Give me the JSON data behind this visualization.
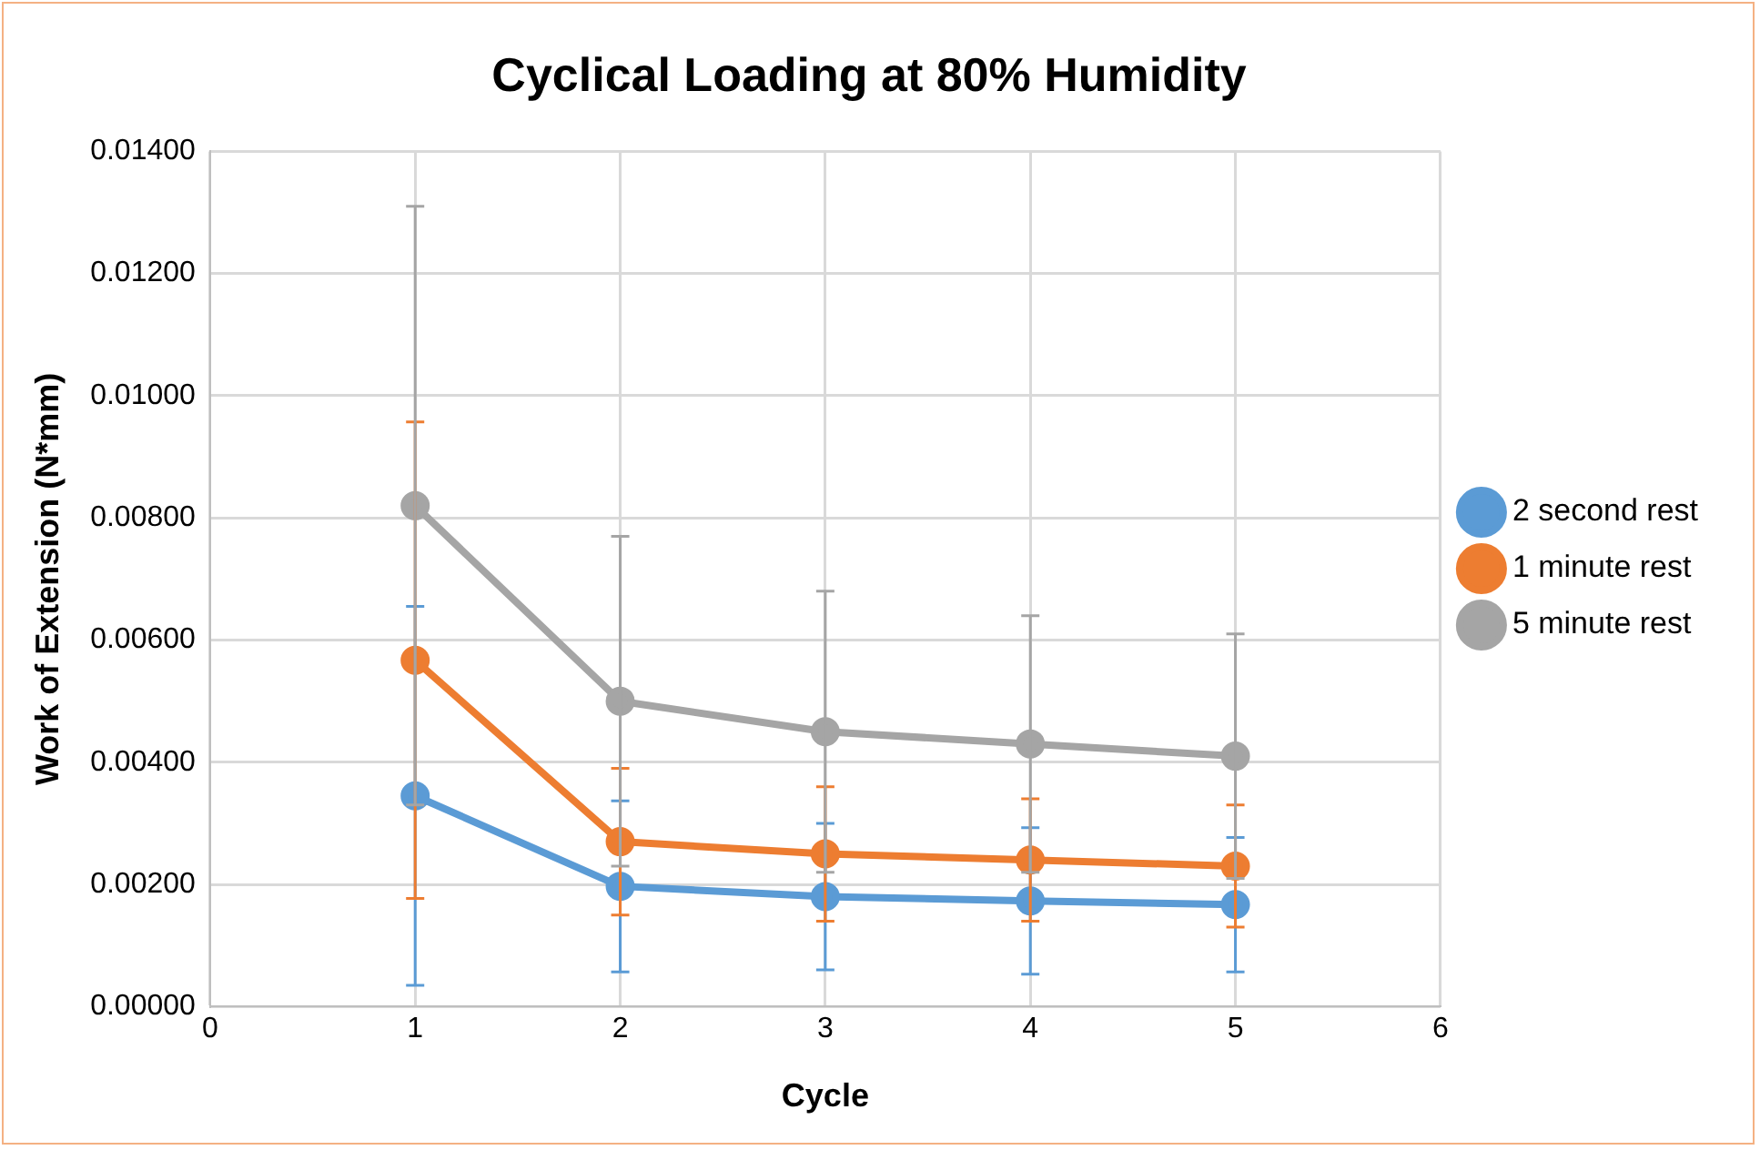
{
  "chart_data": {
    "type": "line",
    "title": "Cyclical Loading at 80% Humidity",
    "xlabel": "Cycle",
    "ylabel": "Work of Extension (N*mm)",
    "x": [
      1,
      2,
      3,
      4,
      5
    ],
    "series": [
      {
        "name": "2 second rest",
        "color": "#5b9bd5",
        "values": [
          0.00345,
          0.00197,
          0.0018,
          0.00173,
          0.00167
        ],
        "errors": [
          0.0031,
          0.0014,
          0.0012,
          0.0012,
          0.0011
        ]
      },
      {
        "name": "1 minute rest",
        "color": "#ed7d31",
        "values": [
          0.00567,
          0.0027,
          0.0025,
          0.0024,
          0.0023
        ],
        "errors": [
          0.0039,
          0.0012,
          0.0011,
          0.001,
          0.001
        ]
      },
      {
        "name": "5 minute rest",
        "color": "#a5a5a5",
        "values": [
          0.0082,
          0.005,
          0.0045,
          0.0043,
          0.0041
        ],
        "errors": [
          0.0049,
          0.0027,
          0.0023,
          0.0021,
          0.002
        ]
      }
    ],
    "xlim": [
      0,
      6
    ],
    "xticks": [
      0,
      1,
      2,
      3,
      4,
      5,
      6
    ],
    "ylim": [
      0,
      0.014
    ],
    "yticks": [
      {
        "value": 0,
        "label": "0.00000"
      },
      {
        "value": 0.002,
        "label": "0.00200"
      },
      {
        "value": 0.004,
        "label": "0.00400"
      },
      {
        "value": 0.006,
        "label": "0.00600"
      },
      {
        "value": 0.008,
        "label": "0.00800"
      },
      {
        "value": 0.01,
        "label": "0.01000"
      },
      {
        "value": 0.012,
        "label": "0.01200"
      },
      {
        "value": 0.014,
        "label": "0.01400"
      }
    ],
    "grid": true,
    "legend": "right",
    "marker": "circle",
    "line_style": "solid"
  }
}
